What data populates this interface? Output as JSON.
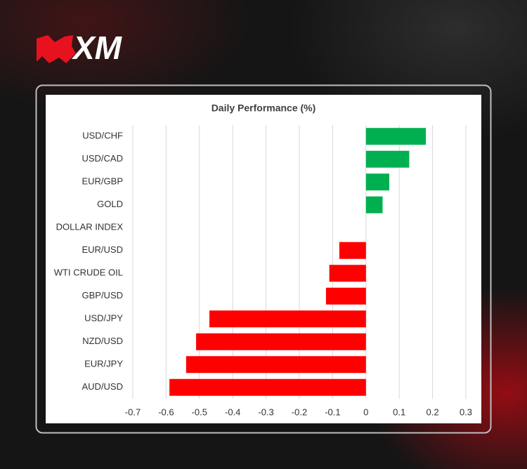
{
  "logo": "XM",
  "chart_data": {
    "type": "hbar",
    "title": "Daily Performance (%)",
    "categories": [
      "USD/CHF",
      "USD/CAD",
      "EUR/GBP",
      "GOLD",
      "DOLLAR INDEX",
      "EUR/USD",
      "WTI CRUDE OIL",
      "GBP/USD",
      "USD/JPY",
      "NZD/USD",
      "EUR/JPY",
      "AUD/USD"
    ],
    "values": [
      0.18,
      0.13,
      0.07,
      0.05,
      0,
      -0.08,
      -0.11,
      -0.12,
      -0.47,
      -0.51,
      -0.54,
      -0.59
    ],
    "positive_color": "#00b050",
    "negative_color": "#ff0000",
    "xlim": [
      -0.7,
      0.3
    ],
    "xticks": [
      -0.7,
      -0.6,
      -0.5,
      -0.4,
      -0.3,
      -0.2,
      -0.1,
      0,
      0.1,
      0.2,
      0.3
    ],
    "grid": true
  }
}
